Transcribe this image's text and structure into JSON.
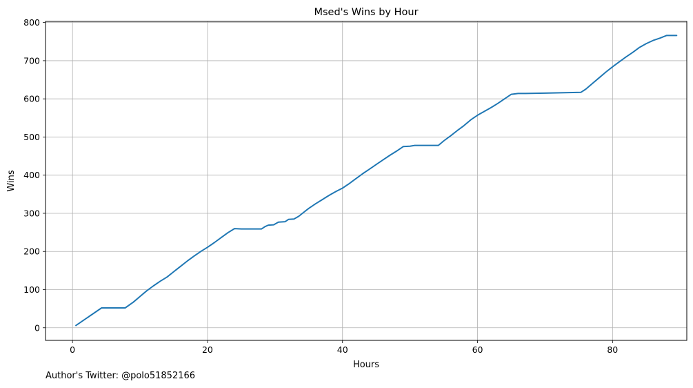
{
  "footnote": "Author's Twitter: @polo51852166",
  "chart_data": {
    "type": "line",
    "title": "Msed's Wins by Hour",
    "xlabel": "Hours",
    "ylabel": "Wins",
    "xlim": [
      -4,
      91
    ],
    "ylim": [
      -33,
      803
    ],
    "xticks": [
      0,
      20,
      40,
      60,
      80
    ],
    "yticks": [
      0,
      100,
      200,
      300,
      400,
      500,
      600,
      700,
      800
    ],
    "grid": true,
    "line_color": "#1f77b4",
    "series": [
      {
        "x": [
          0.5,
          4.3,
          7.8,
          9,
          10,
          11,
          12,
          13,
          14,
          15,
          16,
          17,
          18,
          19,
          20,
          21,
          22,
          23,
          24,
          25,
          25.8,
          28,
          28.5,
          29,
          29.8,
          30.5,
          31.5,
          32,
          32.8,
          33.5,
          34.2,
          35,
          36,
          37,
          38,
          39,
          40,
          41,
          42,
          43,
          44,
          45,
          46,
          47,
          48,
          49,
          50,
          50.7,
          51.5,
          54.2,
          55,
          56,
          57,
          58,
          59,
          60,
          61,
          62,
          63,
          64,
          65,
          66,
          67,
          70,
          75.3,
          76,
          77,
          78,
          79,
          80,
          81,
          82,
          83,
          84,
          85,
          86,
          87,
          88,
          89,
          89.5
        ],
        "y": [
          6,
          52,
          52,
          67,
          82,
          97,
          110,
          122,
          133,
          147,
          161,
          175,
          188,
          200,
          211,
          223,
          236,
          249,
          260,
          259,
          259,
          259,
          265,
          269,
          270,
          277,
          278,
          284,
          285,
          292,
          302,
          313,
          325,
          336,
          347,
          357,
          366,
          378,
          391,
          404,
          416,
          428,
          440,
          452,
          463,
          475,
          476,
          478,
          478,
          478,
          490,
          503,
          517,
          530,
          545,
          557,
          567,
          577,
          588,
          600,
          612,
          614,
          614,
          615,
          617,
          625,
          640,
          655,
          670,
          684,
          697,
          710,
          722,
          735,
          745,
          753,
          759,
          766,
          766,
          766
        ]
      }
    ]
  }
}
